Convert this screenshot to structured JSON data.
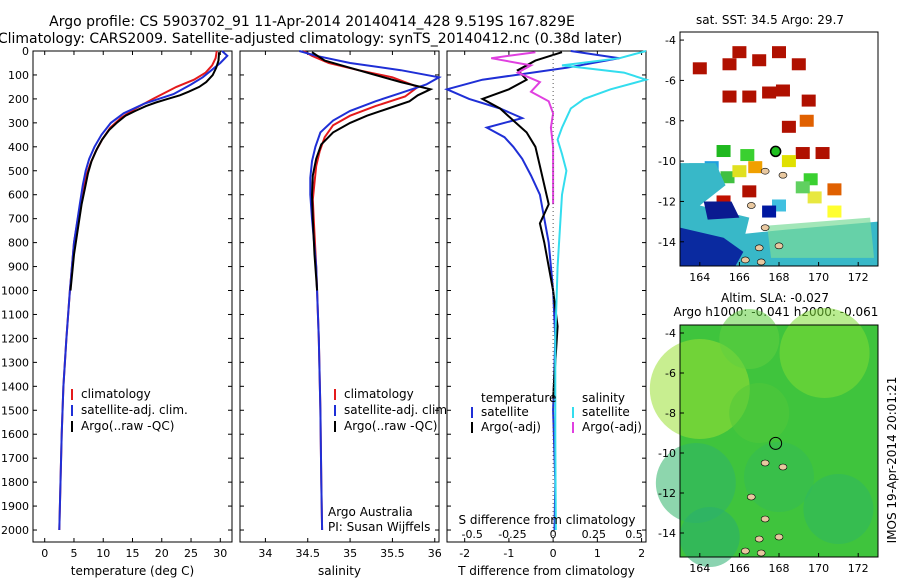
{
  "header": {
    "line1": "Argo profile: CS 5903702_91 11-Apr-2014 20140414_428 9.519S 167.829E",
    "line2": "Climatology: CARS2009. Satellite-adjusted climatology: synTS_20140412.nc (0.38d later)"
  },
  "side_stamp": "IMOS 19-Apr-2014 20:01:21",
  "colors": {
    "climatology": "#e41a1c",
    "satellite": "#1f2fd6",
    "argo": "#000000",
    "sat_salinity": "#33ddee",
    "argo_salinity": "#e040e0",
    "sst_bg": "#ffffff",
    "sla_green": "#39c43a"
  },
  "chart_data": [
    {
      "type": "line",
      "id": "temperature",
      "xlabel": "temperature (deg C)",
      "ylabel": "",
      "xlim": [
        -2,
        32
      ],
      "ylim": [
        2050,
        0
      ],
      "xticks": [
        0,
        5,
        10,
        15,
        20,
        25,
        30
      ],
      "yticks": [
        0,
        100,
        200,
        300,
        400,
        500,
        600,
        700,
        800,
        900,
        1000,
        1100,
        1200,
        1300,
        1400,
        1500,
        1600,
        1700,
        1800,
        1900,
        2000
      ],
      "legend": [
        "climatology",
        "satellite-adj. clim.",
        "Argo(..raw -QC)"
      ],
      "series": [
        {
          "name": "climatology",
          "color": "#e41a1c",
          "x": [
            29.4,
            29.2,
            28.6,
            27.5,
            25.5,
            22.5,
            18.5,
            15.5,
            13,
            11.2,
            9.8,
            8.7,
            7.8,
            7.1,
            6.5,
            6,
            5,
            4.3,
            3.7,
            3.2,
            2.9,
            2.6,
            2.5
          ],
          "y": [
            0,
            30,
            60,
            90,
            120,
            150,
            200,
            240,
            280,
            320,
            370,
            420,
            470,
            520,
            580,
            650,
            800,
            1000,
            1200,
            1400,
            1600,
            1900,
            2000
          ]
        },
        {
          "name": "satellite-adj. clim.",
          "color": "#1f2fd6",
          "x": [
            30.3,
            31.2,
            30,
            28.5,
            27,
            25,
            22,
            17,
            13.5,
            11.3,
            9.7,
            8.5,
            7.6,
            7,
            6.5,
            6,
            5,
            4.3,
            3.7,
            3.2,
            2.9,
            2.6,
            2.5
          ],
          "y": [
            0,
            20,
            50,
            80,
            110,
            140,
            180,
            220,
            260,
            300,
            350,
            400,
            450,
            500,
            560,
            640,
            800,
            1000,
            1200,
            1400,
            1600,
            1900,
            2000
          ]
        },
        {
          "name": "Argo(..raw -QC)",
          "color": "#000000",
          "x": [
            29.8,
            29.7,
            29.3,
            28.7,
            27.6,
            26.4,
            24.6,
            23.1,
            21,
            19,
            17.3,
            15.5,
            13.8,
            12.3,
            11,
            9.8,
            8.9,
            8,
            7.4,
            6.9,
            6.3,
            5.8,
            5,
            4.4
          ],
          "y": [
            5,
            40,
            70,
            100,
            130,
            150,
            170,
            185,
            200,
            215,
            230,
            250,
            270,
            300,
            330,
            370,
            410,
            460,
            510,
            570,
            640,
            720,
            850,
            1000
          ]
        }
      ]
    },
    {
      "type": "line",
      "id": "salinity",
      "xlabel": "salinity",
      "xlim": [
        33.7,
        36.05
      ],
      "ylim": [
        2050,
        0
      ],
      "xticks": [
        34,
        34.5,
        35,
        35.5,
        36
      ],
      "legend": [
        "climatology",
        "satellite-adj. clim.",
        "Argo(..raw -QC)"
      ],
      "annotation": [
        "Argo Australia",
        "PI: Susan Wijffels"
      ],
      "series": [
        {
          "name": "climatology",
          "color": "#e41a1c",
          "x": [
            34.45,
            34.55,
            34.75,
            35.1,
            35.5,
            35.8,
            35.65,
            35.3,
            35,
            34.8,
            34.7,
            34.64,
            34.6,
            34.58,
            34.56,
            34.57,
            34.6,
            34.63,
            34.65,
            34.66,
            34.67
          ],
          "y": [
            0,
            20,
            50,
            80,
            110,
            150,
            190,
            230,
            270,
            310,
            360,
            420,
            480,
            550,
            620,
            700,
            900,
            1200,
            1500,
            1800,
            2000
          ]
        },
        {
          "name": "satellite-adj. clim.",
          "color": "#1f2fd6",
          "x": [
            34.4,
            34.6,
            35,
            35.6,
            36.05,
            35.9,
            35.6,
            35.3,
            35,
            34.8,
            34.65,
            34.59,
            34.55,
            34.53,
            34.53,
            34.55,
            34.6,
            34.63,
            34.65,
            34.66,
            34.67
          ],
          "y": [
            0,
            20,
            50,
            80,
            110,
            140,
            175,
            210,
            250,
            290,
            340,
            400,
            460,
            530,
            600,
            700,
            900,
            1200,
            1500,
            1800,
            2000
          ]
        },
        {
          "name": "Argo(..raw -QC)",
          "color": "#000000",
          "x": [
            34.55,
            34.7,
            35,
            35.3,
            35.6,
            35.95,
            35.8,
            35.7,
            35.45,
            35.2,
            35,
            34.8,
            34.66,
            34.6,
            34.56,
            34.55,
            34.56,
            34.58,
            34.61
          ],
          "y": [
            5,
            40,
            70,
            100,
            130,
            160,
            185,
            210,
            240,
            270,
            300,
            340,
            390,
            450,
            520,
            600,
            700,
            850,
            1000
          ]
        }
      ]
    },
    {
      "type": "line",
      "id": "difference",
      "xlabel": "T difference from climatology",
      "xlabel_top": "S difference from climatology",
      "xlim": [
        -2.4,
        2.1
      ],
      "ylim": [
        2050,
        0
      ],
      "xticks_T": [
        -2,
        -1,
        0,
        1,
        2
      ],
      "xticks_S": [
        "-0.5",
        "-0.25",
        "0",
        "0.25",
        "0.5"
      ],
      "legend_titles": [
        "temperature",
        "salinity"
      ],
      "legend": [
        "satellite",
        "Argo(-adj)",
        "satellite",
        "Argo(-adj)"
      ],
      "series": [
        {
          "name": "temperature satellite",
          "color": "#1f2fd6",
          "x": [
            0.4,
            1.5,
            0.3,
            -1.6,
            -2.4,
            -1.9,
            -1.2,
            -0.7,
            -1.5,
            -1.1,
            -0.9,
            -0.7,
            -0.5,
            -0.3,
            -0.2,
            -0.1,
            0,
            0.05,
            0,
            0.05,
            0.03
          ],
          "y": [
            0,
            30,
            70,
            120,
            160,
            200,
            240,
            280,
            320,
            360,
            400,
            450,
            520,
            600,
            700,
            800,
            1000,
            1200,
            1500,
            1800,
            2000
          ]
        },
        {
          "name": "temperature Argo(-adj)",
          "color": "#000000",
          "x": [
            0.2,
            -0.4,
            -0.8,
            -0.6,
            -1,
            -1.6,
            -1.2,
            -0.9,
            -0.6,
            -0.4,
            -0.3,
            -0.2,
            -0.1,
            -0.3,
            -0.2,
            -0.1,
            0,
            0.1,
            0.05,
            0
          ],
          "y": [
            5,
            40,
            80,
            120,
            160,
            200,
            240,
            290,
            340,
            400,
            480,
            560,
            640,
            720,
            800,
            900,
            1000,
            1150,
            1300,
            1450
          ]
        },
        {
          "name": "salinity satellite",
          "color": "#33ddee",
          "x": [
            2.1,
            1.5,
            0.2,
            1.6,
            2.1,
            1.3,
            0.7,
            0.4,
            0.3,
            0.2,
            0.1,
            0.2,
            0.3,
            0.2,
            0.15,
            0.1,
            0.05,
            0.05,
            0.06
          ],
          "y": [
            0,
            30,
            60,
            90,
            120,
            160,
            200,
            240,
            280,
            320,
            370,
            430,
            500,
            600,
            750,
            900,
            1200,
            1600,
            2000
          ]
        },
        {
          "name": "salinity Argo(-adj)",
          "color": "#e040e0",
          "x": [
            -0.4,
            -1.4,
            -0.5,
            -0.8,
            -0.3,
            -0.5,
            -0.1,
            0,
            -0.05,
            0,
            0,
            0,
            0
          ],
          "y": [
            5,
            30,
            60,
            90,
            130,
            170,
            210,
            260,
            320,
            400,
            480,
            560,
            640
          ]
        }
      ]
    },
    {
      "type": "heatmap",
      "id": "sst_map",
      "title": "sat. SST: 34.5  Argo: 29.7",
      "xlim": [
        163,
        173
      ],
      "ylim": [
        -15.2,
        -3.6
      ],
      "xticks": [
        164,
        166,
        168,
        170,
        172
      ],
      "yticks": [
        -4,
        -6,
        -8,
        -10,
        -12,
        -14
      ],
      "argo_marker": [
        167.83,
        -9.52
      ]
    },
    {
      "type": "heatmap",
      "id": "sla_map",
      "title": "Altim. SLA: -0.027",
      "subtitle": "Argo h1000: -0.041 h2000: -0.061",
      "xlim": [
        163,
        173
      ],
      "ylim": [
        -15.2,
        -3.6
      ],
      "xticks": [
        164,
        166,
        168,
        170,
        172
      ],
      "yticks": [
        -4,
        -6,
        -8,
        -10,
        -12,
        -14
      ],
      "argo_marker": [
        167.83,
        -9.52
      ]
    }
  ]
}
